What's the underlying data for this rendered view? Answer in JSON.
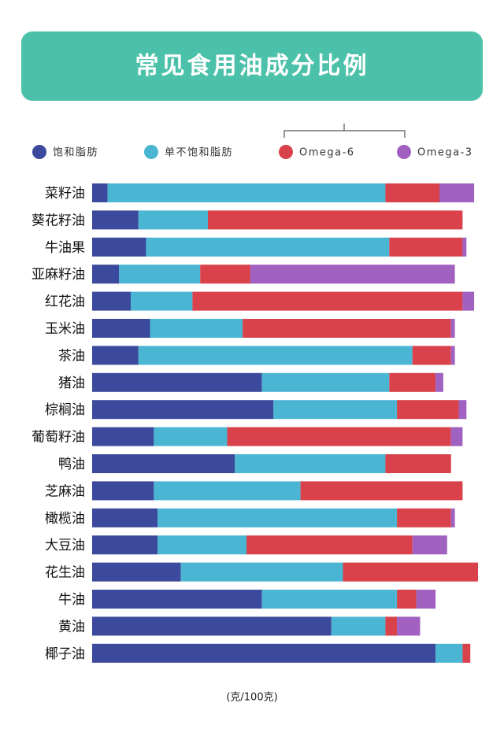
{
  "chart_data": {
    "type": "stacked-bar-horizontal",
    "title": "常见食用油成分比例",
    "x_label": "(克/100克)",
    "categories": [
      "菜籽油",
      "葵花籽油",
      "牛油果",
      "亚麻籽油",
      "红花油",
      "玉米油",
      "茶油",
      "猪油",
      "棕榈油",
      "葡萄籽油",
      "鸭油",
      "芝麻油",
      "橄榄油",
      "大豆油",
      "花生油",
      "牛油",
      "黄油",
      "椰子油"
    ],
    "series": [
      {
        "name": "饱和脂肪",
        "color": "#3b4a9c",
        "values": [
          4,
          12,
          14,
          7,
          10,
          15,
          12,
          44,
          47,
          16,
          37,
          16,
          17,
          17,
          23,
          44,
          62,
          89
        ]
      },
      {
        "name": "单不饱和脂肪",
        "color": "#4bb6d3",
        "values": [
          72,
          18,
          63,
          21,
          16,
          24,
          71,
          33,
          32,
          19,
          39,
          38,
          62,
          23,
          42,
          35,
          14,
          7
        ]
      },
      {
        "name": "Omega-6",
        "color": "#d9414b",
        "values": [
          14,
          66,
          19,
          13,
          70,
          54,
          10,
          12,
          16,
          58,
          17,
          42,
          14,
          43,
          35,
          5,
          3,
          2
        ]
      },
      {
        "name": "Omega-3",
        "color": "#a061c0",
        "values": [
          9,
          0,
          1,
          53,
          3,
          1,
          1,
          2,
          2,
          3,
          0,
          0,
          1,
          9,
          0,
          5,
          6,
          0
        ]
      }
    ],
    "xlim": [
      0,
      100
    ]
  }
}
